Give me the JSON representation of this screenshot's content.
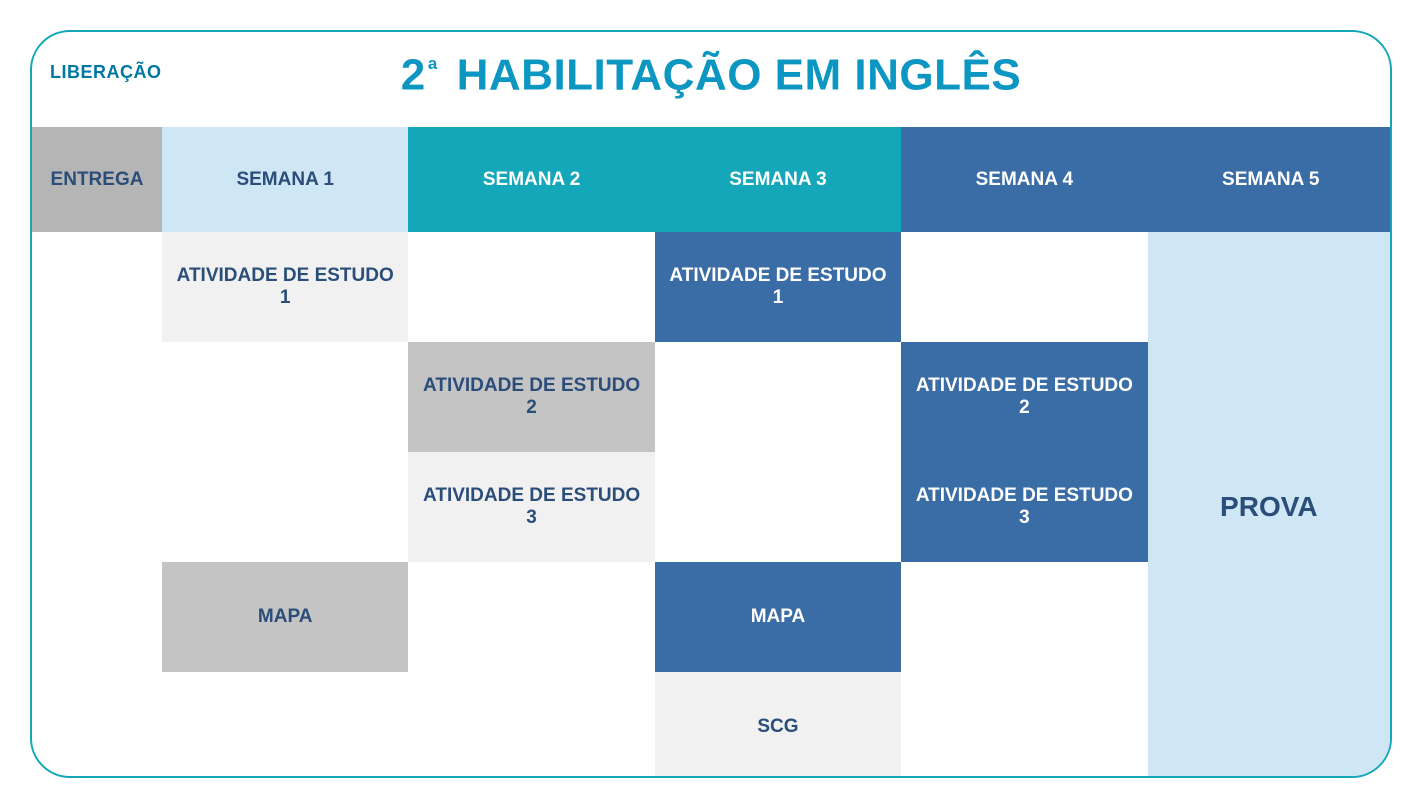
{
  "colors": {
    "border": "#14a7b9",
    "title": "#0c97c2",
    "liberacao": "#0077a3",
    "text_dark_blue": "#2a4d7a",
    "text_white": "#ffffff",
    "header_entrega_bg": "#b5b5b5",
    "header_sem1_bg": "#cfe6f5",
    "header_sem2_bg": "#14a7b9",
    "header_sem3_bg": "#14a7b9",
    "header_sem4_bg": "#3a6ca5",
    "header_sem5_bg": "#3a6ca5",
    "cell_light_gray": "#f1f1f1",
    "cell_mid_gray": "#c4c4c4",
    "cell_dark_blue": "#3a6ca5",
    "cell_pale_blue": "#cfe6f5",
    "empty": "#ffffff"
  },
  "topLabel": "LIBERAÇÃO",
  "title": {
    "prefix": "2",
    "sup": "ª",
    "rest": " HABILITAÇÃO EM INGLÊS"
  },
  "header": {
    "entrega": "ENTREGA",
    "semana1": "SEMANA 1",
    "semana2": "SEMANA 2",
    "semana3": "SEMANA 3",
    "semana4": "SEMANA 4",
    "semana5": "SEMANA 5"
  },
  "rows": [
    {
      "c1": "ATIVIDADE DE ESTUDO 1",
      "c2": "",
      "c3": "ATIVIDADE DE ESTUDO 1",
      "c4": ""
    },
    {
      "c1": "",
      "c2": "ATIVIDADE DE ESTUDO 2",
      "c3": "",
      "c4": "ATIVIDADE DE ESTUDO 2"
    },
    {
      "c1": "",
      "c2": "ATIVIDADE DE ESTUDO 3",
      "c3": "",
      "c4": "ATIVIDADE DE ESTUDO 3"
    },
    {
      "c1": "MAPA",
      "c2": "",
      "c3": "MAPA",
      "c4": ""
    },
    {
      "c1": "",
      "c2": "",
      "c3": "SCG",
      "c4": ""
    }
  ],
  "rowStyles": [
    {
      "c1": "light_gray",
      "c2": "empty",
      "c3": "dark_blue",
      "c4": "empty"
    },
    {
      "c1": "empty",
      "c2": "mid_gray",
      "c3": "empty",
      "c4": "dark_blue"
    },
    {
      "c1": "empty",
      "c2": "light_gray",
      "c3": "empty",
      "c4": "dark_blue"
    },
    {
      "c1": "mid_gray",
      "c2": "empty",
      "c3": "dark_blue",
      "c4": "empty"
    },
    {
      "c1": "empty",
      "c2": "empty",
      "c3": "light_gray",
      "c4": "empty"
    }
  ],
  "prova": "PROVA"
}
